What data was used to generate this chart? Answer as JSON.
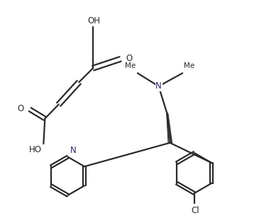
{
  "bg_color": "#ffffff",
  "bond_color": "#2a2a2a",
  "text_color": "#2a2a2a",
  "n_color": "#2a2a6e",
  "bond_lw": 1.6,
  "font_size": 8.5,
  "figsize": [
    3.65,
    3.15
  ],
  "dpi": 100,
  "xlim": [
    -0.05,
    1.05
  ],
  "ylim": [
    -0.05,
    1.05
  ]
}
